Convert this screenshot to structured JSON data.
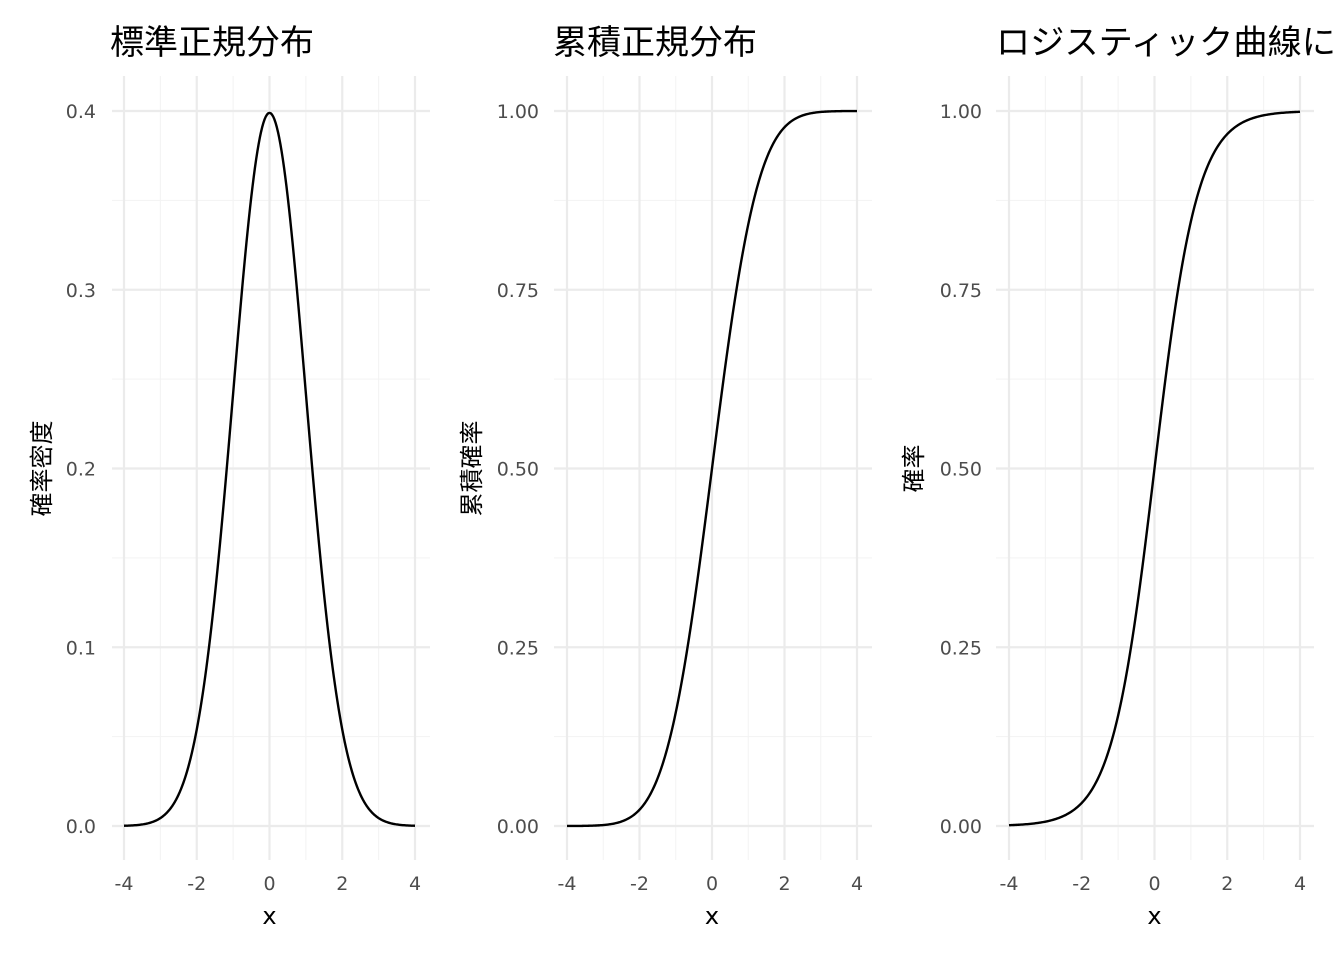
{
  "chart_data": [
    {
      "type": "line",
      "title": "標準正規分布",
      "xlabel": "x",
      "ylabel": "確率密度",
      "function": "normal_pdf",
      "xlim": [
        -4,
        4
      ],
      "ylim": [
        0,
        0.4
      ],
      "x_ticks": [
        -4,
        -2,
        0,
        2,
        4
      ],
      "x_tick_labels": [
        "-4",
        "-2",
        "0",
        "2",
        "4"
      ],
      "y_ticks": [
        0,
        0.1,
        0.2,
        0.3,
        0.4
      ],
      "y_tick_labels": [
        "0.0",
        "0.1",
        "0.2",
        "0.3",
        "0.4"
      ],
      "grid": true,
      "x": [
        -4,
        -3.5,
        -3,
        -2.5,
        -2,
        -1.5,
        -1,
        -0.5,
        0,
        0.5,
        1,
        1.5,
        2,
        2.5,
        3,
        3.5,
        4
      ],
      "y": [
        0.0001,
        0.0009,
        0.0044,
        0.0175,
        0.054,
        0.1295,
        0.242,
        0.3521,
        0.3989,
        0.3521,
        0.242,
        0.1295,
        0.054,
        0.0175,
        0.0044,
        0.0009,
        0.0001
      ]
    },
    {
      "type": "line",
      "title": "累積正規分布",
      "xlabel": "x",
      "ylabel": "累積確率",
      "function": "normal_cdf",
      "xlim": [
        -4,
        4
      ],
      "ylim": [
        0,
        1
      ],
      "x_ticks": [
        -4,
        -2,
        0,
        2,
        4
      ],
      "x_tick_labels": [
        "-4",
        "-2",
        "0",
        "2",
        "4"
      ],
      "y_ticks": [
        0,
        0.25,
        0.5,
        0.75,
        1
      ],
      "y_tick_labels": [
        "0.00",
        "0.25",
        "0.50",
        "0.75",
        "1.00"
      ],
      "grid": true,
      "x": [
        -4,
        -3.5,
        -3,
        -2.5,
        -2,
        -1.5,
        -1,
        -0.5,
        0,
        0.5,
        1,
        1.5,
        2,
        2.5,
        3,
        3.5,
        4
      ],
      "y": [
        0.0,
        0.0002,
        0.0013,
        0.0062,
        0.0228,
        0.0668,
        0.1587,
        0.3085,
        0.5,
        0.6915,
        0.8413,
        0.9332,
        0.9772,
        0.9938,
        0.9987,
        0.9998,
        1.0
      ]
    },
    {
      "type": "line",
      "title": "ロジスティック曲線に",
      "xlabel": "x",
      "ylabel": "確率",
      "function": "logistic",
      "xlim": [
        -4,
        4
      ],
      "ylim": [
        0,
        1
      ],
      "x_ticks": [
        -4,
        -2,
        0,
        2,
        4
      ],
      "x_tick_labels": [
        "-4",
        "-2",
        "0",
        "2",
        "4"
      ],
      "y_ticks": [
        0,
        0.25,
        0.5,
        0.75,
        1
      ],
      "y_tick_labels": [
        "0.00",
        "0.25",
        "0.50",
        "0.75",
        "1.00"
      ],
      "grid": true,
      "x": [
        -4,
        -3.5,
        -3,
        -2.5,
        -2,
        -1.5,
        -1,
        -0.5,
        0,
        0.5,
        1,
        1.5,
        2,
        2.5,
        3,
        3.5,
        4
      ],
      "y": [
        0.0009,
        0.0022,
        0.0052,
        0.0123,
        0.0288,
        0.0653,
        0.1411,
        0.2769,
        0.5,
        0.7231,
        0.8589,
        0.9347,
        0.9712,
        0.9877,
        0.9948,
        0.9978,
        0.9991
      ]
    }
  ]
}
